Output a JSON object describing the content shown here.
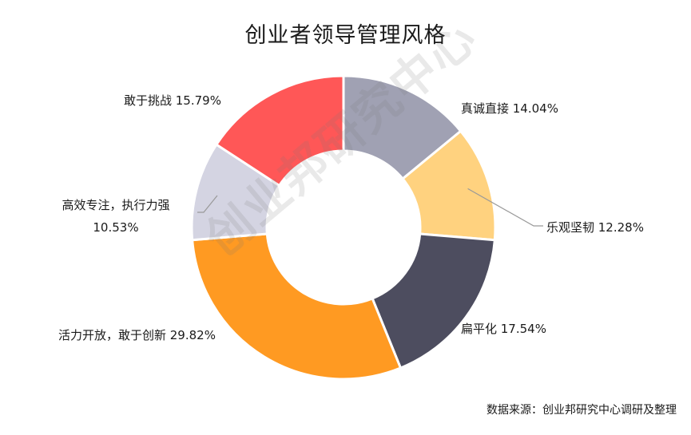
{
  "chart_data": {
    "type": "pie",
    "title": "创业者领导管理风格",
    "donut": true,
    "slices": [
      {
        "name": "真诚直接",
        "value": 14.04,
        "label": "真诚直接 14.04%",
        "color": "#a0a1b3"
      },
      {
        "name": "乐观坚韧",
        "value": 12.28,
        "label": "乐观坚韧 12.28%",
        "color": "#ffd27f"
      },
      {
        "name": "扁平化",
        "value": 17.54,
        "label": "扁平化 17.54%",
        "color": "#4d4d5f"
      },
      {
        "name": "活力开放，敢于创新",
        "value": 29.82,
        "label": "活力开放，敢于创新 29.82%",
        "color": "#ff9a22"
      },
      {
        "name": "高效专注，执行力强",
        "value": 10.53,
        "label_lines": [
          "高效专注，执行力强",
          "10.53%"
        ],
        "color": "#d4d4e2"
      },
      {
        "name": "敢于挑战",
        "value": 15.79,
        "label": "敢于挑战 15.79%",
        "color": "#ff5757"
      }
    ]
  },
  "watermark": "创业邦研究中心",
  "source": "数据来源：创业邦研究中心调研及整理"
}
